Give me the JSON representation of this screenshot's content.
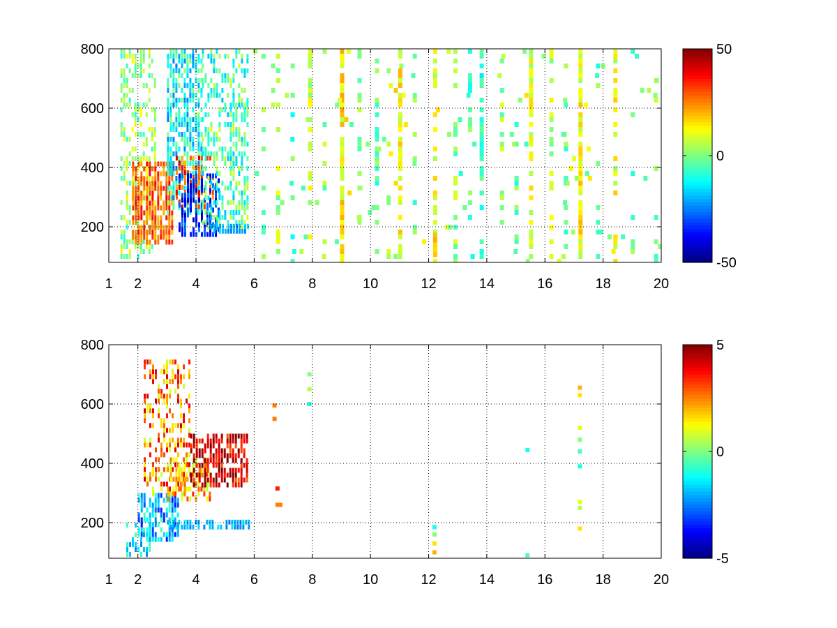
{
  "figure": {
    "background": "#ffffff",
    "grid": true
  },
  "chart_data": [
    {
      "type": "heatmap",
      "title": "",
      "xlabel": "",
      "ylabel": "",
      "xlim": [
        1,
        20
      ],
      "ylim": [
        80,
        800
      ],
      "xticks": [
        1,
        2,
        4,
        6,
        8,
        10,
        12,
        14,
        16,
        18,
        20
      ],
      "xtick_labels": [
        "1",
        "2",
        "4",
        "6",
        "8",
        "10",
        "12",
        "14",
        "16",
        "18",
        "20"
      ],
      "yticks": [
        200,
        400,
        600,
        800
      ],
      "ytick_labels": [
        "200",
        "400",
        "600",
        "800"
      ],
      "grid": true,
      "colormap": "jet",
      "clim": [
        -50,
        50
      ],
      "colorbar": {
        "placement": "right",
        "ticks": [
          50,
          0,
          -50
        ],
        "tick_labels": [
          "50",
          "0",
          "-50"
        ]
      },
      "clusters": [
        {
          "x": [
            1.4,
            2.6
          ],
          "y": [
            100,
            800
          ],
          "value": 2,
          "spread": 12,
          "density": 0.45
        },
        {
          "x": [
            1.8,
            3.2
          ],
          "y": [
            150,
            420
          ],
          "value": 28,
          "spread": 10,
          "density": 0.75
        },
        {
          "x": [
            3.0,
            4.2
          ],
          "y": [
            250,
            800
          ],
          "value": -12,
          "spread": 14,
          "density": 0.65
        },
        {
          "x": [
            3.3,
            4.6
          ],
          "y": [
            260,
            440
          ],
          "value": 30,
          "spread": 12,
          "density": 0.55
        },
        {
          "x": [
            3.4,
            4.8
          ],
          "y": [
            170,
            380
          ],
          "value": -35,
          "spread": 10,
          "density": 0.55
        },
        {
          "x": [
            4.2,
            5.8
          ],
          "y": [
            200,
            800
          ],
          "value": -5,
          "spread": 14,
          "density": 0.45
        },
        {
          "x": [
            4.5,
            5.8
          ],
          "y": [
            180,
            210
          ],
          "value": -20,
          "spread": 5,
          "density": 0.8
        }
      ],
      "stripes": [
        {
          "x": 6.3,
          "value": 0,
          "density": 0.25
        },
        {
          "x": 6.8,
          "value": 5,
          "density": 0.35
        },
        {
          "x": 7.3,
          "value": -5,
          "density": 0.2
        },
        {
          "x": 7.9,
          "value": 8,
          "density": 0.45
        },
        {
          "x": 8.4,
          "value": 2,
          "density": 0.25
        },
        {
          "x": 9.0,
          "value": 14,
          "density": 0.85
        },
        {
          "x": 9.6,
          "value": 0,
          "density": 0.2
        },
        {
          "x": 10.2,
          "value": -3,
          "density": 0.4
        },
        {
          "x": 10.6,
          "value": 5,
          "density": 0.2
        },
        {
          "x": 11.0,
          "value": 12,
          "density": 0.6
        },
        {
          "x": 11.5,
          "value": -2,
          "density": 0.25
        },
        {
          "x": 12.2,
          "value": 10,
          "density": 0.5
        },
        {
          "x": 12.9,
          "value": 2,
          "density": 0.3
        },
        {
          "x": 13.4,
          "value": -4,
          "density": 0.3
        },
        {
          "x": 13.8,
          "value": -8,
          "density": 0.5
        },
        {
          "x": 14.5,
          "value": 3,
          "density": 0.3
        },
        {
          "x": 15.0,
          "value": -3,
          "density": 0.25
        },
        {
          "x": 15.5,
          "value": 10,
          "density": 0.7
        },
        {
          "x": 16.2,
          "value": 6,
          "density": 0.35
        },
        {
          "x": 16.7,
          "value": -2,
          "density": 0.25
        },
        {
          "x": 17.2,
          "value": 12,
          "density": 0.85
        },
        {
          "x": 17.8,
          "value": -3,
          "density": 0.2
        },
        {
          "x": 18.4,
          "value": 10,
          "density": 0.45
        },
        {
          "x": 19.0,
          "value": -2,
          "density": 0.15
        },
        {
          "x": 19.8,
          "value": 0,
          "density": 0.15
        }
      ],
      "spot": {
        "x": 12.2,
        "y": [
          100,
          180
        ],
        "value": 25
      }
    },
    {
      "type": "heatmap",
      "title": "",
      "xlabel": "",
      "ylabel": "",
      "xlim": [
        1,
        20
      ],
      "ylim": [
        80,
        800
      ],
      "xticks": [
        1,
        2,
        4,
        6,
        8,
        10,
        12,
        14,
        16,
        18,
        20
      ],
      "xtick_labels": [
        "1",
        "2",
        "4",
        "6",
        "8",
        "10",
        "12",
        "14",
        "16",
        "18",
        "20"
      ],
      "yticks": [
        200,
        400,
        600,
        800
      ],
      "ytick_labels": [
        "200",
        "400",
        "600",
        "800"
      ],
      "grid": true,
      "colormap": "jet",
      "clim": [
        -5,
        5
      ],
      "colorbar": {
        "placement": "right",
        "ticks": [
          5,
          0,
          -5
        ],
        "tick_labels": [
          "5",
          "0",
          "-5"
        ]
      },
      "clusters": [
        {
          "x": [
            1.6,
            2.4
          ],
          "y": [
            100,
            200
          ],
          "value": -1.5,
          "spread": 1.0,
          "density": 0.45
        },
        {
          "x": [
            2.0,
            3.4
          ],
          "y": [
            150,
            300
          ],
          "value": -2.0,
          "spread": 1.6,
          "density": 0.65
        },
        {
          "x": [
            2.2,
            3.8
          ],
          "y": [
            300,
            750
          ],
          "value": 2.5,
          "spread": 1.8,
          "density": 0.4
        },
        {
          "x": [
            3.0,
            4.5
          ],
          "y": [
            280,
            420
          ],
          "value": 2.0,
          "spread": 1.5,
          "density": 0.6
        },
        {
          "x": [
            3.8,
            5.8
          ],
          "y": [
            320,
            500
          ],
          "value": 4.0,
          "spread": 1.4,
          "density": 0.65
        },
        {
          "x": [
            3.0,
            5.8
          ],
          "y": [
            180,
            210
          ],
          "value": -2.0,
          "spread": 0.6,
          "density": 0.75
        }
      ],
      "points": [
        {
          "x": 6.7,
          "y": 550,
          "value": 2.5
        },
        {
          "x": 6.7,
          "y": 595,
          "value": 2.5
        },
        {
          "x": 6.8,
          "y": 260,
          "value": 2.5
        },
        {
          "x": 6.9,
          "y": 260,
          "value": 2.5
        },
        {
          "x": 6.8,
          "y": 315,
          "value": 3.5
        },
        {
          "x": 7.9,
          "y": 600,
          "value": -1.0
        },
        {
          "x": 7.9,
          "y": 650,
          "value": 0.5
        },
        {
          "x": 7.9,
          "y": 700,
          "value": 0.0
        },
        {
          "x": 12.2,
          "y": 100,
          "value": 2.0
        },
        {
          "x": 12.2,
          "y": 130,
          "value": 1.5
        },
        {
          "x": 12.2,
          "y": 160,
          "value": 0.0
        },
        {
          "x": 12.2,
          "y": 185,
          "value": -1.0
        },
        {
          "x": 15.4,
          "y": 445,
          "value": -1.0
        },
        {
          "x": 15.4,
          "y": 90,
          "value": -0.5
        },
        {
          "x": 17.2,
          "y": 180,
          "value": 1.5
        },
        {
          "x": 17.2,
          "y": 250,
          "value": 0.5
        },
        {
          "x": 17.2,
          "y": 270,
          "value": 1.0
        },
        {
          "x": 17.2,
          "y": 390,
          "value": -1.0
        },
        {
          "x": 17.2,
          "y": 440,
          "value": -0.5
        },
        {
          "x": 17.2,
          "y": 480,
          "value": 0.0
        },
        {
          "x": 17.2,
          "y": 520,
          "value": 1.0
        },
        {
          "x": 17.2,
          "y": 630,
          "value": 1.5
        },
        {
          "x": 17.2,
          "y": 655,
          "value": 2.0
        }
      ]
    }
  ]
}
